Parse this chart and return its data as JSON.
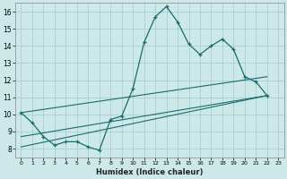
{
  "xlabel": "Humidex (Indice chaleur)",
  "bg_color": "#cce8e8",
  "grid_color": "#aacece",
  "line_color": "#1a6b6b",
  "xlim": [
    -0.5,
    23.5
  ],
  "ylim": [
    7.5,
    16.5
  ],
  "xticks": [
    0,
    1,
    2,
    3,
    4,
    5,
    6,
    7,
    8,
    9,
    10,
    11,
    12,
    13,
    14,
    15,
    16,
    17,
    18,
    19,
    20,
    21,
    22,
    23
  ],
  "yticks": [
    8,
    9,
    10,
    11,
    12,
    13,
    14,
    15,
    16
  ],
  "series1_x": [
    0,
    1,
    2,
    3,
    4,
    5,
    6,
    7,
    8,
    9,
    10,
    11,
    12,
    13,
    14,
    15,
    16,
    17,
    18,
    19,
    20,
    21,
    22
  ],
  "series1_y": [
    10.1,
    9.5,
    8.7,
    8.2,
    8.4,
    8.4,
    8.1,
    7.9,
    9.7,
    9.9,
    11.5,
    14.2,
    15.7,
    16.3,
    15.4,
    14.1,
    13.5,
    14.0,
    14.4,
    13.8,
    12.2,
    11.9,
    11.1
  ],
  "series2_x": [
    0,
    22
  ],
  "series2_y": [
    10.1,
    12.2
  ],
  "series3_x": [
    0,
    22
  ],
  "series3_y": [
    8.7,
    11.1
  ],
  "series4_x": [
    0,
    22
  ],
  "series4_y": [
    8.1,
    11.1
  ]
}
